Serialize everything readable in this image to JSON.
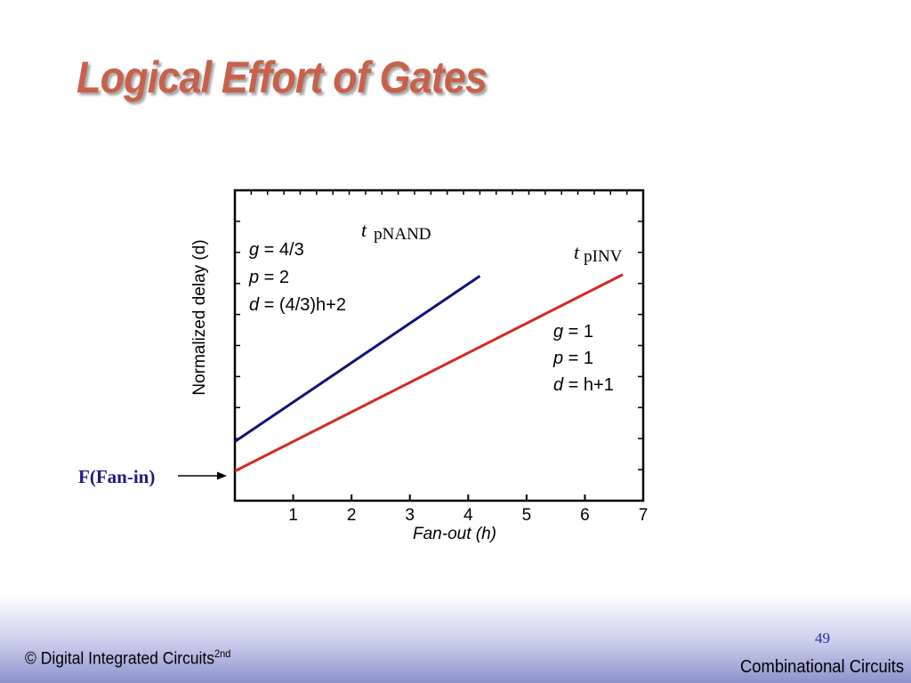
{
  "slide": {
    "title": "Logical Effort of Gates",
    "footer_left": "© Digital Integrated Circuits",
    "footer_sup": "2nd",
    "footer_right": "Combinational Circuits",
    "page_number": "49"
  },
  "colors": {
    "nand": "#12127a",
    "inv": "#d42a20",
    "title": "#c8614b",
    "fanin": "#1a1a8c"
  },
  "chart_data": {
    "type": "line",
    "xlabel": "Fan-out (h)",
    "ylabel": "Normalized delay (d)",
    "x_ticks": [
      1,
      2,
      3,
      4,
      5,
      6,
      7
    ],
    "xlim": [
      0,
      7
    ],
    "ylim": [
      0,
      10.5
    ],
    "series": [
      {
        "name": "pNAND",
        "label_t": "t",
        "label_sub": "pNAND",
        "x": [
          0,
          4.2
        ],
        "y": [
          2,
          7.6
        ],
        "color": "#12127a",
        "annotation": [
          {
            "var": "g",
            "rest": " = 4/3"
          },
          {
            "var": "p",
            "rest": " = 2"
          },
          {
            "var": "d",
            "rest": " = (4/3)h+2"
          }
        ]
      },
      {
        "name": "pINV",
        "label_t": "t",
        "label_sub": "pINV",
        "x": [
          0,
          6.65
        ],
        "y": [
          1,
          7.65
        ],
        "color": "#d42a20",
        "annotation": [
          {
            "var": "g",
            "rest": " = 1"
          },
          {
            "var": "p",
            "rest": " = 1"
          },
          {
            "var": "d",
            "rest": " = h+1"
          }
        ]
      }
    ],
    "side_label": "F(Fan-in)"
  }
}
